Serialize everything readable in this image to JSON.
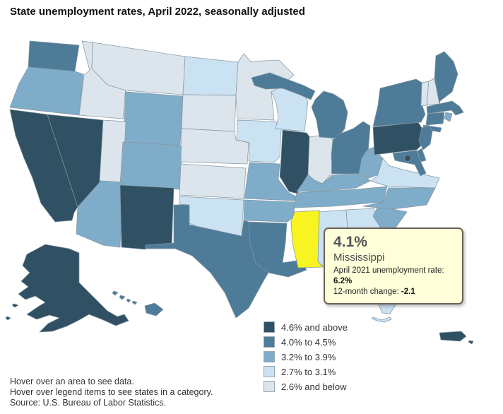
{
  "title": "State unemployment rates, April 2022, seasonally adjusted",
  "tooltip": {
    "value": "4.1%",
    "state": "Mississippi",
    "detail1_label": "April 2021 unemployment rate:",
    "detail1_value": "6.2%",
    "detail2_label": "12-month change:",
    "detail2_value": "-2.1"
  },
  "footer": {
    "lines": [
      "Hover over an area to see data.",
      "Hover over legend items to see states in a category.",
      "Source: U.S. Bureau of Labor Statistics."
    ]
  },
  "chart_data": {
    "type": "choropleth",
    "title": "State unemployment rates, April 2022, seasonally adjusted",
    "unit": "unemployment rate (%)",
    "source": "U.S. Bureau of Labor Statistics",
    "highlight_color": "#F7F421",
    "border_color": "#8496A3",
    "legend_position": "bottom-right",
    "categories": [
      {
        "id": "c5",
        "label": "4.6% and above",
        "color": "#2F5163"
      },
      {
        "id": "c4",
        "label": "4.0% to 4.5%",
        "color": "#4E7C98"
      },
      {
        "id": "c3",
        "label": "3.2% to 3.9%",
        "color": "#7FADC9"
      },
      {
        "id": "c2",
        "label": "2.7% to 3.1%",
        "color": "#CBE2F2"
      },
      {
        "id": "c1",
        "label": "2.6% and below",
        "color": "#DBE5EB"
      }
    ],
    "highlighted_state": {
      "id": "MS",
      "name": "Mississippi",
      "value": "4.1%",
      "april_2021_rate": "6.2%",
      "twelve_month_change": "-2.1"
    },
    "states": [
      {
        "id": "WA",
        "name": "Washington",
        "category": "c4"
      },
      {
        "id": "OR",
        "name": "Oregon",
        "category": "c3"
      },
      {
        "id": "CA",
        "name": "California",
        "category": "c5"
      },
      {
        "id": "NV",
        "name": "Nevada",
        "category": "c5"
      },
      {
        "id": "ID",
        "name": "Idaho",
        "category": "c1"
      },
      {
        "id": "MT",
        "name": "Montana",
        "category": "c1"
      },
      {
        "id": "WY",
        "name": "Wyoming",
        "category": "c3"
      },
      {
        "id": "UT",
        "name": "Utah",
        "category": "c1"
      },
      {
        "id": "CO",
        "name": "Colorado",
        "category": "c3"
      },
      {
        "id": "AZ",
        "name": "Arizona",
        "category": "c3"
      },
      {
        "id": "NM",
        "name": "New Mexico",
        "category": "c5"
      },
      {
        "id": "ND",
        "name": "North Dakota",
        "category": "c2"
      },
      {
        "id": "SD",
        "name": "South Dakota",
        "category": "c1"
      },
      {
        "id": "NE",
        "name": "Nebraska",
        "category": "c1"
      },
      {
        "id": "KS",
        "name": "Kansas",
        "category": "c1"
      },
      {
        "id": "OK",
        "name": "Oklahoma",
        "category": "c2"
      },
      {
        "id": "TX",
        "name": "Texas",
        "category": "c4"
      },
      {
        "id": "MN",
        "name": "Minnesota",
        "category": "c1"
      },
      {
        "id": "IA",
        "name": "Iowa",
        "category": "c2"
      },
      {
        "id": "MO",
        "name": "Missouri",
        "category": "c3"
      },
      {
        "id": "AR",
        "name": "Arkansas",
        "category": "c3"
      },
      {
        "id": "LA",
        "name": "Louisiana",
        "category": "c4"
      },
      {
        "id": "WI",
        "name": "Wisconsin",
        "category": "c2"
      },
      {
        "id": "IL",
        "name": "Illinois",
        "category": "c5"
      },
      {
        "id": "IN",
        "name": "Indiana",
        "category": "c1"
      },
      {
        "id": "MI",
        "name": "Michigan",
        "category": "c4"
      },
      {
        "id": "UP",
        "name": "Michigan Upper Peninsula",
        "category": "c4"
      },
      {
        "id": "OH",
        "name": "Ohio",
        "category": "c4"
      },
      {
        "id": "KY",
        "name": "Kentucky",
        "category": "c3"
      },
      {
        "id": "TN",
        "name": "Tennessee",
        "category": "c3"
      },
      {
        "id": "MS",
        "name": "Mississippi",
        "category": "c4",
        "highlighted": true
      },
      {
        "id": "AL",
        "name": "Alabama",
        "category": "c2"
      },
      {
        "id": "GA",
        "name": "Georgia",
        "category": "c2"
      },
      {
        "id": "FL",
        "name": "Florida",
        "category": "c2"
      },
      {
        "id": "SC",
        "name": "South Carolina",
        "category": "c3"
      },
      {
        "id": "NC",
        "name": "North Carolina",
        "category": "c3"
      },
      {
        "id": "VA",
        "name": "Virginia",
        "category": "c2"
      },
      {
        "id": "WV",
        "name": "West Virginia",
        "category": "c3"
      },
      {
        "id": "PA",
        "name": "Pennsylvania",
        "category": "c5"
      },
      {
        "id": "NY",
        "name": "New York",
        "category": "c4"
      },
      {
        "id": "LI",
        "name": "New York Long Island",
        "category": "c4"
      },
      {
        "id": "NJ",
        "name": "New Jersey",
        "category": "c4"
      },
      {
        "id": "VT",
        "name": "Vermont",
        "category": "c1"
      },
      {
        "id": "NH",
        "name": "New Hampshire",
        "category": "c1"
      },
      {
        "id": "ME",
        "name": "Maine",
        "category": "c4"
      },
      {
        "id": "MA",
        "name": "Massachusetts",
        "category": "c4"
      },
      {
        "id": "RI",
        "name": "Rhode Island",
        "category": "c3"
      },
      {
        "id": "CT",
        "name": "Connecticut",
        "category": "c4"
      },
      {
        "id": "DE",
        "name": "Delaware",
        "category": "c4"
      },
      {
        "id": "MD",
        "name": "Maryland",
        "category": "c4"
      },
      {
        "id": "DC",
        "name": "District of Columbia",
        "category": "c5"
      },
      {
        "id": "AK",
        "name": "Alaska",
        "category": "c5"
      },
      {
        "id": "HI",
        "name": "Hawaii",
        "category": "c4"
      },
      {
        "id": "PR",
        "name": "Puerto Rico",
        "category": "c5"
      }
    ]
  }
}
